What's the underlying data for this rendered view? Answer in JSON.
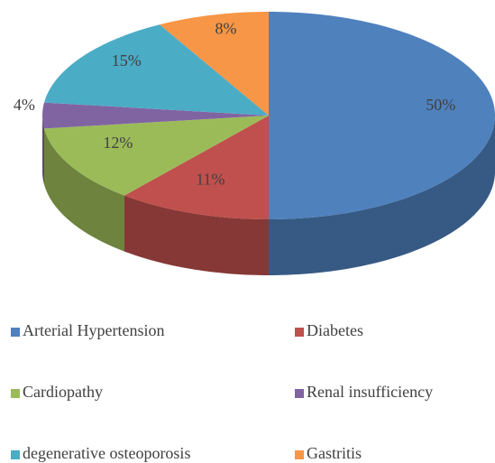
{
  "chart_data": {
    "type": "pie3d",
    "categories": [
      "Arterial Hypertension",
      "Diabetes",
      "Cardiopathy",
      "Renal insufficiency",
      "degenerative osteoporosis",
      "Gastritis"
    ],
    "values": [
      50,
      11,
      12,
      4,
      15,
      8
    ],
    "value_labels": [
      "50%",
      "11%",
      "12%",
      "4%",
      "15%",
      "8%"
    ],
    "colors": [
      "#4f81bd",
      "#c0504d",
      "#9bbb59",
      "#8064a2",
      "#4bacc6",
      "#f79646"
    ],
    "legend": "bottom"
  }
}
